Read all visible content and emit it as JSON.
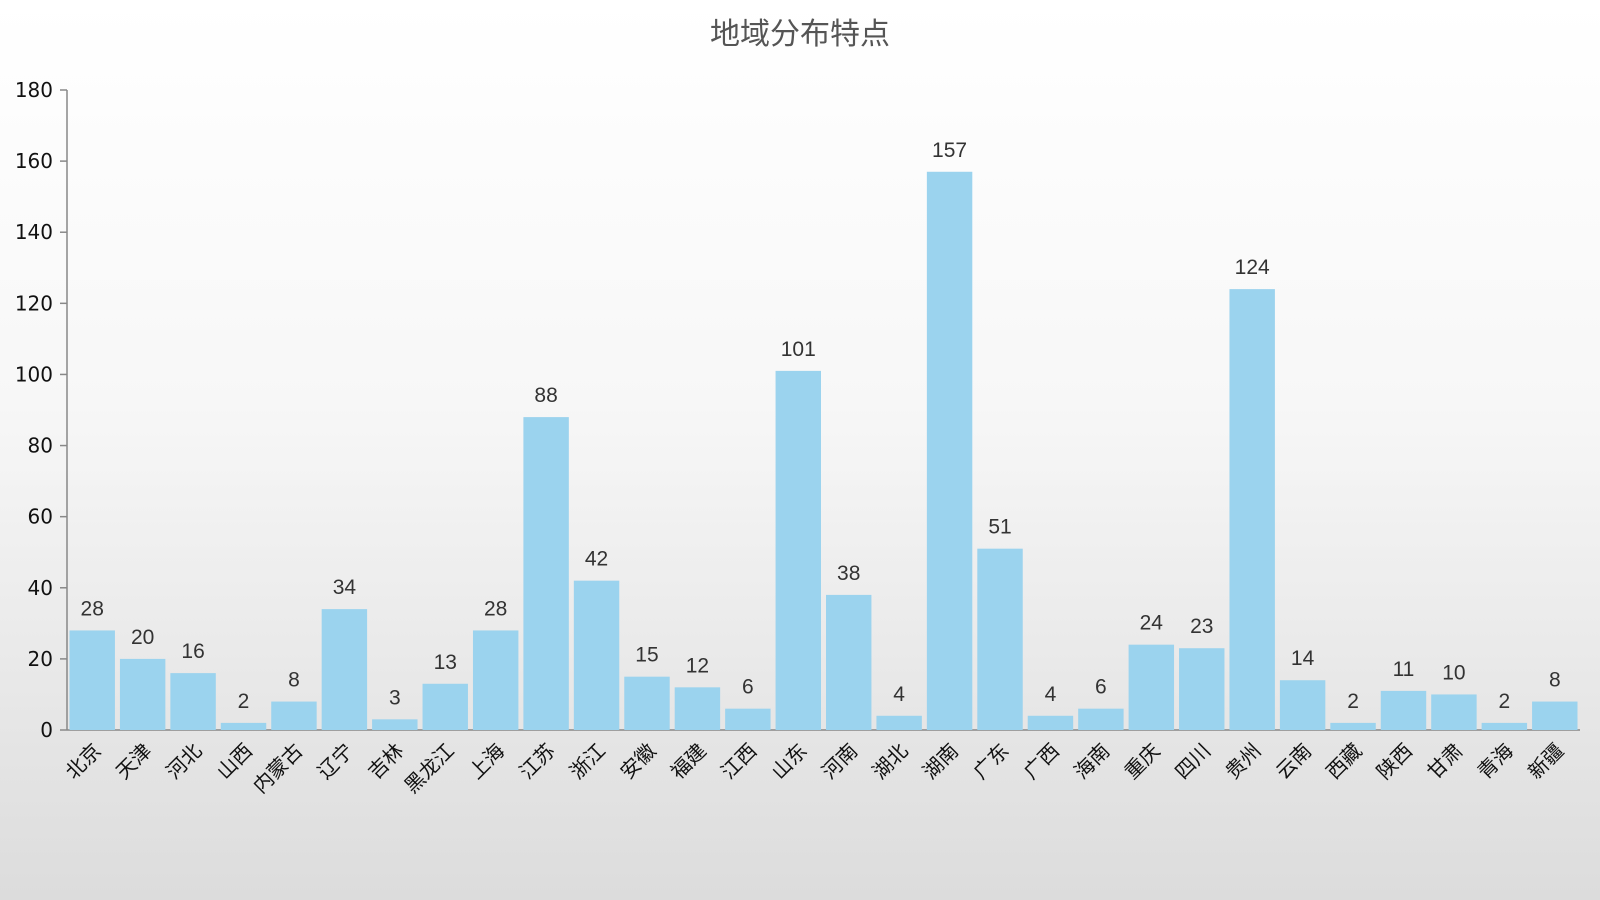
{
  "chart_data": {
    "type": "bar",
    "title": "地域分布特点",
    "xlabel": "",
    "ylabel": "",
    "ylim": [
      0,
      180
    ],
    "yticks": [
      0,
      20,
      40,
      60,
      80,
      100,
      120,
      140,
      160,
      180
    ],
    "grid": false,
    "legend": "none",
    "bar_color": "#9bd3ee",
    "categories": [
      "北京",
      "天津",
      "河北",
      "山西",
      "内蒙古",
      "辽宁",
      "吉林",
      "黑龙江",
      "上海",
      "江苏",
      "浙江",
      "安徽",
      "福建",
      "江西",
      "山东",
      "河南",
      "湖北",
      "湖南",
      "广东",
      "广西",
      "海南",
      "重庆",
      "四川",
      "贵州",
      "云南",
      "西藏",
      "陕西",
      "甘肃",
      "青海",
      "新疆"
    ],
    "values": [
      28,
      20,
      16,
      2,
      8,
      34,
      3,
      13,
      28,
      88,
      42,
      15,
      12,
      6,
      101,
      38,
      4,
      157,
      51,
      4,
      6,
      24,
      23,
      124,
      14,
      2,
      11,
      10,
      2,
      8
    ]
  }
}
